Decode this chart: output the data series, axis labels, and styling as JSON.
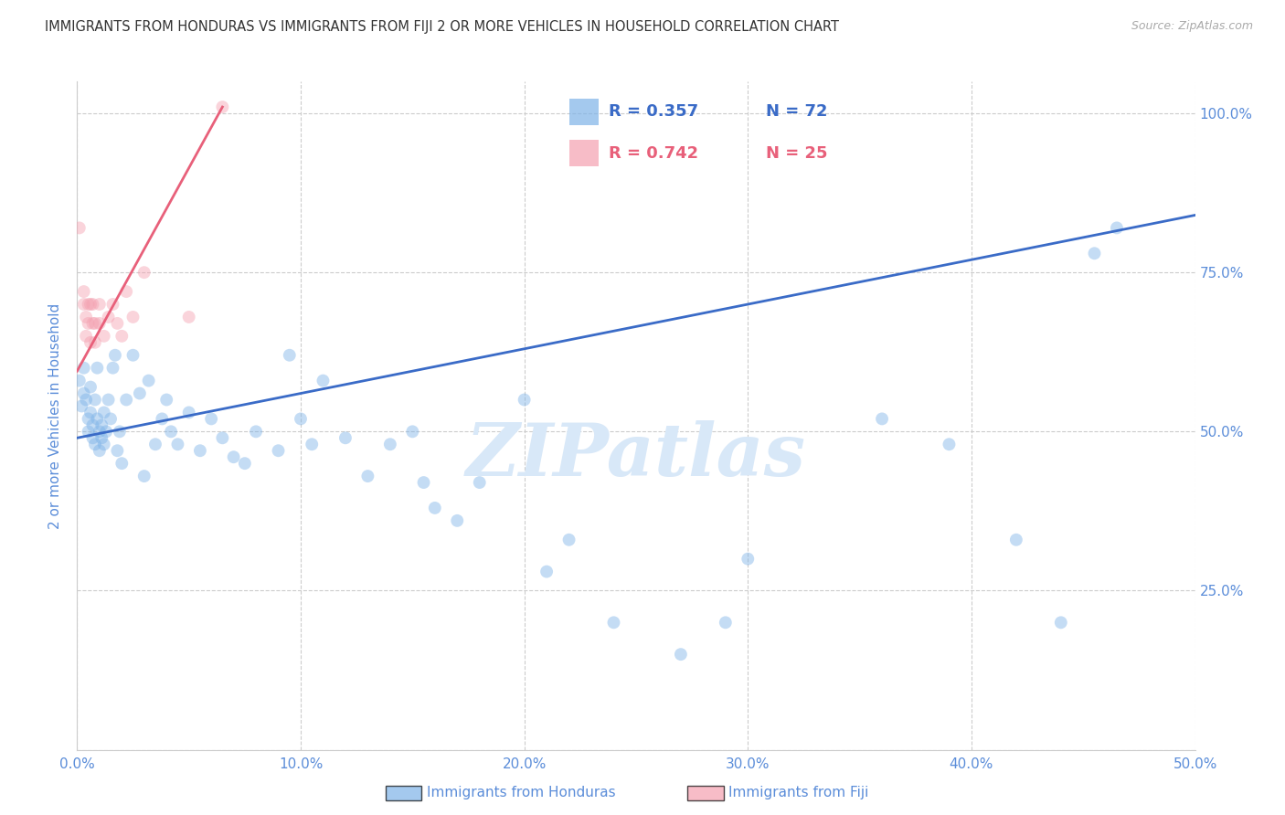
{
  "title": "IMMIGRANTS FROM HONDURAS VS IMMIGRANTS FROM FIJI 2 OR MORE VEHICLES IN HOUSEHOLD CORRELATION CHART",
  "source": "Source: ZipAtlas.com",
  "ylabel": "2 or more Vehicles in Household",
  "watermark": "ZIPatlas",
  "xlim": [
    0.0,
    0.5
  ],
  "ylim": [
    0.0,
    1.05
  ],
  "xticks": [
    0.0,
    0.1,
    0.2,
    0.3,
    0.4,
    0.5
  ],
  "yticks": [
    0.0,
    0.25,
    0.5,
    0.75,
    1.0
  ],
  "xtick_labels": [
    "0.0%",
    "10.0%",
    "20.0%",
    "30.0%",
    "40.0%",
    "50.0%"
  ],
  "ytick_labels_right": [
    "",
    "25.0%",
    "50.0%",
    "75.0%",
    "100.0%"
  ],
  "legend_blue_label": "Immigrants from Honduras",
  "legend_pink_label": "Immigrants from Fiji",
  "legend_blue_r": "R = 0.357",
  "legend_blue_n": "N = 72",
  "legend_pink_r": "R = 0.742",
  "legend_pink_n": "N = 25",
  "blue_color": "#7EB3E8",
  "pink_color": "#F4A0B0",
  "line_blue_color": "#3A6BC7",
  "line_pink_color": "#E8607A",
  "tick_color": "#5B8DD9",
  "grid_color": "#CCCCCC",
  "title_color": "#333333",
  "source_color": "#AAAAAA",
  "watermark_color": "#D8E8F8",
  "blue_x": [
    0.001,
    0.002,
    0.003,
    0.003,
    0.004,
    0.005,
    0.005,
    0.006,
    0.006,
    0.007,
    0.007,
    0.008,
    0.008,
    0.009,
    0.009,
    0.01,
    0.01,
    0.011,
    0.011,
    0.012,
    0.012,
    0.013,
    0.014,
    0.015,
    0.016,
    0.017,
    0.018,
    0.019,
    0.02,
    0.022,
    0.025,
    0.028,
    0.03,
    0.032,
    0.035,
    0.038,
    0.04,
    0.042,
    0.045,
    0.05,
    0.055,
    0.06,
    0.065,
    0.07,
    0.075,
    0.08,
    0.09,
    0.095,
    0.1,
    0.105,
    0.11,
    0.12,
    0.13,
    0.14,
    0.15,
    0.155,
    0.16,
    0.17,
    0.18,
    0.2,
    0.21,
    0.22,
    0.24,
    0.27,
    0.29,
    0.3,
    0.36,
    0.39,
    0.42,
    0.44,
    0.455,
    0.465
  ],
  "blue_y": [
    0.58,
    0.54,
    0.6,
    0.56,
    0.55,
    0.52,
    0.5,
    0.53,
    0.57,
    0.49,
    0.51,
    0.48,
    0.55,
    0.52,
    0.6,
    0.47,
    0.5,
    0.49,
    0.51,
    0.53,
    0.48,
    0.5,
    0.55,
    0.52,
    0.6,
    0.62,
    0.47,
    0.5,
    0.45,
    0.55,
    0.62,
    0.56,
    0.43,
    0.58,
    0.48,
    0.52,
    0.55,
    0.5,
    0.48,
    0.53,
    0.47,
    0.52,
    0.49,
    0.46,
    0.45,
    0.5,
    0.47,
    0.62,
    0.52,
    0.48,
    0.58,
    0.49,
    0.43,
    0.48,
    0.5,
    0.42,
    0.38,
    0.36,
    0.42,
    0.55,
    0.28,
    0.33,
    0.2,
    0.15,
    0.2,
    0.3,
    0.52,
    0.48,
    0.33,
    0.2,
    0.78,
    0.82
  ],
  "pink_x": [
    0.001,
    0.003,
    0.003,
    0.004,
    0.004,
    0.005,
    0.005,
    0.006,
    0.006,
    0.007,
    0.007,
    0.008,
    0.008,
    0.01,
    0.01,
    0.012,
    0.014,
    0.016,
    0.018,
    0.02,
    0.022,
    0.025,
    0.03,
    0.05,
    0.065
  ],
  "pink_y": [
    0.82,
    0.7,
    0.72,
    0.68,
    0.65,
    0.7,
    0.67,
    0.64,
    0.7,
    0.67,
    0.7,
    0.67,
    0.64,
    0.7,
    0.67,
    0.65,
    0.68,
    0.7,
    0.67,
    0.65,
    0.72,
    0.68,
    0.75,
    0.68,
    1.01
  ],
  "blue_line_x": [
    0.0,
    0.5
  ],
  "blue_line_y": [
    0.49,
    0.84
  ],
  "pink_line_x": [
    0.0,
    0.065
  ],
  "pink_line_y": [
    0.595,
    1.01
  ],
  "marker_size": 100,
  "marker_alpha": 0.45
}
